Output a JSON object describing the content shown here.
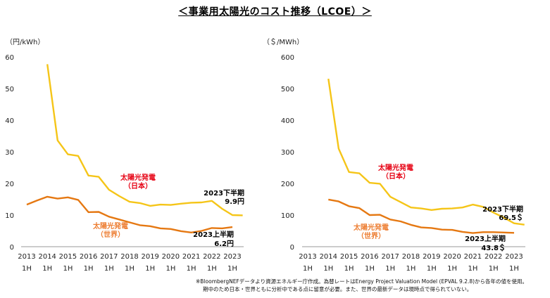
{
  "title": "＜事業用太陽光のコスト推移（LCOE）＞",
  "footnote": {
    "line1": "※BloombergNEFデータより資源エネルギー庁作成。為替レートはEnergy Project Valuation Model (EPVAL 9.2.8)から各年の値を使用。",
    "line2": "期中のため日本・世界ともに分析中である点に留意が必要。また、世界の最新データは現時点で得られていない。"
  },
  "colors": {
    "japan": "#f5c518",
    "world": "#e57812",
    "japan_label": "#e60012",
    "world_label": "#ed7d31"
  },
  "chart_data": [
    {
      "type": "line",
      "unit_label": "（円/kWh）",
      "ylim": [
        0,
        60
      ],
      "yticks": [
        0,
        10,
        20,
        30,
        40,
        50,
        60
      ],
      "x_years": [
        "2013",
        "2014",
        "2015",
        "2016",
        "2017",
        "2018",
        "2019",
        "2020",
        "2021",
        "2022",
        "2023"
      ],
      "x_half": "1H",
      "series": [
        {
          "name": "太陽光発電（日本）",
          "label_lines": [
            "太陽光発電",
            "（日本）"
          ],
          "x": [
            2014.0,
            2014.5,
            2015.0,
            2015.5,
            2016.0,
            2016.5,
            2017.0,
            2017.5,
            2018.0,
            2018.5,
            2019.0,
            2019.5,
            2020.0,
            2020.5,
            2021.0,
            2021.5,
            2022.0,
            2022.5,
            2023.0,
            2023.5
          ],
          "values": [
            57.7,
            33.6,
            29.2,
            28.7,
            22.5,
            22.1,
            18.0,
            16.0,
            14.2,
            13.8,
            12.9,
            13.3,
            13.2,
            13.6,
            13.9,
            14.0,
            14.5,
            12.0,
            10.0,
            9.9
          ],
          "end_label": [
            "2023下半期",
            "9.9円"
          ]
        },
        {
          "name": "太陽光発電（世界）",
          "label_lines": [
            "太陽光発電",
            "（世界）"
          ],
          "x": [
            2013.0,
            2013.5,
            2014.0,
            2014.5,
            2015.0,
            2015.5,
            2016.0,
            2016.5,
            2017.0,
            2017.5,
            2018.0,
            2018.5,
            2019.0,
            2019.5,
            2020.0,
            2020.5,
            2021.0,
            2021.5,
            2022.0,
            2022.5,
            2023.0
          ],
          "values": [
            13.3,
            14.6,
            15.8,
            15.2,
            15.6,
            14.8,
            10.9,
            11.0,
            9.5,
            8.6,
            7.7,
            6.8,
            6.5,
            5.8,
            5.6,
            4.9,
            4.5,
            5.0,
            5.9,
            5.8,
            6.2
          ],
          "end_label": [
            "2023上半期",
            "6.2円"
          ]
        }
      ]
    },
    {
      "type": "line",
      "unit_label": "（＄/MWh）",
      "ylim": [
        0,
        600
      ],
      "yticks": [
        0,
        100,
        200,
        300,
        400,
        500,
        600
      ],
      "x_years": [
        "2013",
        "2014",
        "2015",
        "2016",
        "2017",
        "2018",
        "2019",
        "2020",
        "2021",
        "2022",
        "2023"
      ],
      "x_half": "1H",
      "series": [
        {
          "name": "太陽光発電（日本）",
          "label_lines": [
            "太陽光発電",
            "（日本）"
          ],
          "x": [
            2014.0,
            2014.5,
            2015.0,
            2015.5,
            2016.0,
            2016.5,
            2017.0,
            2017.5,
            2018.0,
            2018.5,
            2019.0,
            2019.5,
            2020.0,
            2020.5,
            2021.0,
            2021.5,
            2022.0,
            2022.5,
            2023.0,
            2023.5
          ],
          "values": [
            531,
            310,
            236,
            232,
            202,
            199,
            158,
            141,
            124,
            121,
            116,
            120,
            121,
            124,
            133,
            126,
            108,
            92,
            74,
            69.5
          ],
          "end_label": [
            "2023下半期",
            "69.5＄"
          ]
        },
        {
          "name": "太陽光発電（世界）",
          "label_lines": [
            "太陽光発電",
            "（世界）"
          ],
          "x": [
            2014.0,
            2014.5,
            2015.0,
            2015.5,
            2016.0,
            2016.5,
            2017.0,
            2017.5,
            2018.0,
            2018.5,
            2019.0,
            2019.5,
            2020.0,
            2020.5,
            2021.0,
            2021.5,
            2022.0,
            2022.5,
            2023.0
          ],
          "values": [
            149,
            143,
            128,
            122,
            100,
            101,
            86,
            80,
            69,
            61,
            59,
            54,
            53,
            47,
            43,
            46,
            46,
            45,
            43.8
          ],
          "end_label": [
            "2023上半期",
            "43.8＄"
          ]
        }
      ]
    }
  ]
}
